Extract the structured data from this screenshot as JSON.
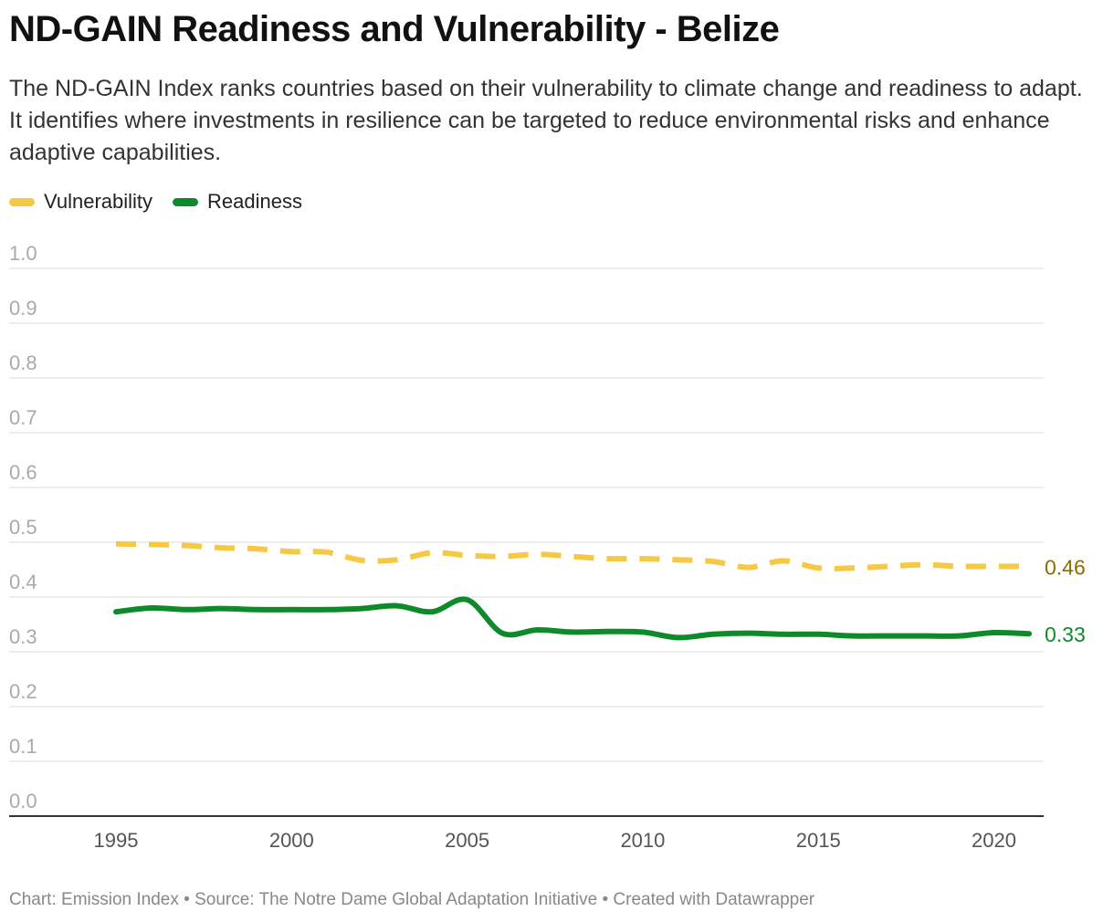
{
  "title": "ND-GAIN Readiness and Vulnerability - Belize",
  "subtitle": "The ND-GAIN Index ranks countries based on their vulnerability to climate change and readiness to adapt. It identifies where investments in resilience can be targeted to reduce environmental risks and enhance adaptive capabilities.",
  "footer": {
    "chart": "Chart: Emission Index",
    "separator1": "•",
    "source": "Source: The Notre Dame Global Adaptation Initiative",
    "separator2": "•",
    "created": "Created with Datawrapper"
  },
  "chart_data": {
    "type": "line",
    "title": "ND-GAIN Readiness and Vulnerability - Belize",
    "xlabel": "",
    "ylabel": "",
    "xlim": [
      1995,
      2021
    ],
    "ylim": [
      0.0,
      1.0
    ],
    "yticks": [
      "0.0",
      "0.1",
      "0.2",
      "0.3",
      "0.4",
      "0.5",
      "0.6",
      "0.7",
      "0.8",
      "0.9",
      "1.0"
    ],
    "xticks": [
      "1995",
      "2000",
      "2005",
      "2010",
      "2015",
      "2020"
    ],
    "grid": true,
    "legend_position": "top-left",
    "x": [
      1995,
      1996,
      1997,
      1998,
      1999,
      2000,
      2001,
      2002,
      2003,
      2004,
      2005,
      2006,
      2007,
      2008,
      2009,
      2010,
      2011,
      2012,
      2013,
      2014,
      2015,
      2016,
      2017,
      2018,
      2019,
      2020,
      2021
    ],
    "series": [
      {
        "name": "Vulnerability",
        "color": "#f7c843",
        "dash": "dashed",
        "end_label": "0.46",
        "end_label_color": "#8a6d00",
        "values": [
          0.497,
          0.496,
          0.494,
          0.49,
          0.488,
          0.483,
          0.482,
          0.467,
          0.468,
          0.481,
          0.476,
          0.474,
          0.478,
          0.474,
          0.47,
          0.47,
          0.468,
          0.465,
          0.454,
          0.466,
          0.453,
          0.453,
          0.456,
          0.459,
          0.456,
          0.456,
          0.456
        ]
      },
      {
        "name": "Readiness",
        "color": "#0f8a2a",
        "dash": "solid",
        "end_label": "0.33",
        "end_label_color": "#0f8a2a",
        "values": [
          0.373,
          0.38,
          0.377,
          0.379,
          0.377,
          0.377,
          0.377,
          0.379,
          0.384,
          0.373,
          0.395,
          0.334,
          0.34,
          0.336,
          0.337,
          0.336,
          0.326,
          0.332,
          0.334,
          0.332,
          0.332,
          0.329,
          0.329,
          0.329,
          0.329,
          0.335,
          0.333
        ]
      }
    ]
  }
}
